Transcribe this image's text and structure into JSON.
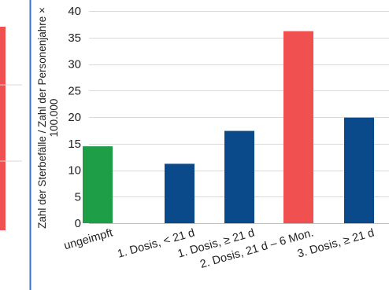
{
  "chart_data": {
    "type": "bar",
    "categories": [
      "ungeimpft",
      "1. Dosis, < 21 d",
      "1. Dosis, ≥ 21 d",
      "2. Dosis, 21 d – 6 Mon.",
      "3. Dosis, ≥ 21 d"
    ],
    "values": [
      14.5,
      11.2,
      17.4,
      36.2,
      19.9
    ],
    "bar_colors": [
      "#1e9e47",
      "#0b4a8a",
      "#0b4a8a",
      "#f05050",
      "#0b4a8a"
    ],
    "ylabel_line1": "Zahl der Sterbefälle / Zahl der Personenjahre ×",
    "ylabel_line2": "100.000",
    "ylim": [
      0,
      40
    ],
    "yticks": [
      0,
      5,
      10,
      15,
      20,
      25,
      30,
      35,
      40
    ],
    "grid": true,
    "grid_color": "#d9d9d9"
  },
  "left_panel": {
    "bar_color": "#f05050",
    "frame_color": "#3a72c4"
  }
}
